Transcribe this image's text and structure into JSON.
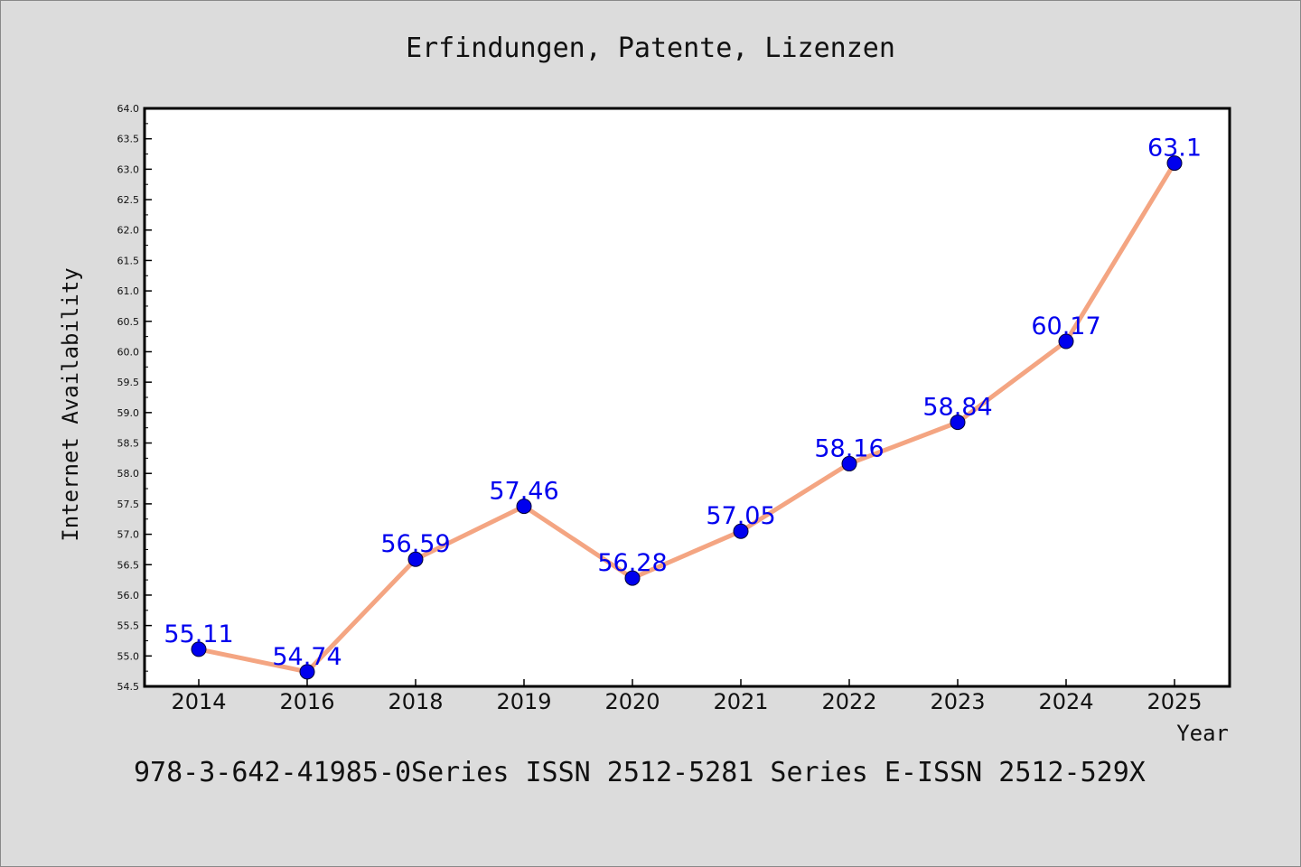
{
  "chart_data": {
    "type": "line",
    "title": "Erfindungen, Patente, Lizenzen",
    "xlabel": "Year",
    "ylabel": "Internet Availability",
    "categories": [
      "2014",
      "2016",
      "2018",
      "2019",
      "2020",
      "2021",
      "2022",
      "2023",
      "2024",
      "2025"
    ],
    "series": [
      {
        "values": [
          55.11,
          54.74,
          56.59,
          57.46,
          56.28,
          57.05,
          58.16,
          58.84,
          60.17,
          63.1
        ],
        "labels": [
          "55.11",
          "54.74",
          "56.59",
          "57.46",
          "56.28",
          "57.05",
          "58.16",
          "58.84",
          "60.17",
          "63.1"
        ]
      }
    ],
    "ylim": [
      54.5,
      64.0
    ],
    "yticks": [
      "54.5",
      "55.0",
      "55.5",
      "56.0",
      "56.5",
      "57.0",
      "57.5",
      "58.0",
      "58.5",
      "59.0",
      "59.5",
      "60.0",
      "60.5",
      "61.0",
      "61.5",
      "62.0",
      "62.5",
      "63.0",
      "63.5",
      "64.0"
    ],
    "grid": false,
    "legend": "none",
    "colors": {
      "line": "#f4a582",
      "marker": "#0000ee",
      "data_label": "#0000ee",
      "background": "#dcdcdc",
      "plot_background": "#ffffff"
    }
  },
  "footer": {
    "text": "978-3-642-41985-0Series ISSN 2512-5281 Series E-ISSN 2512-529X"
  }
}
